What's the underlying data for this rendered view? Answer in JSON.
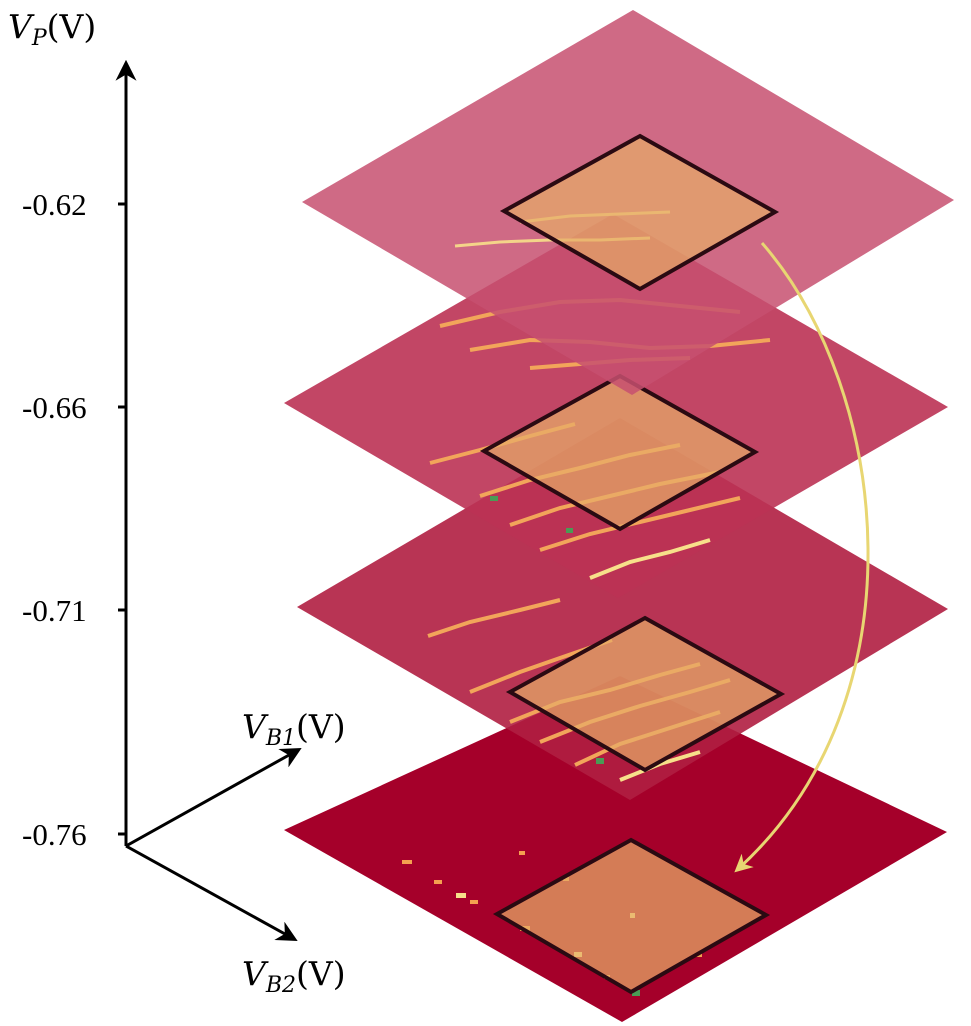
{
  "axes": {
    "vertical": {
      "symbol": "V",
      "subscript": "P",
      "unit": "(V)"
    },
    "b1": {
      "symbol": "V",
      "subscript": "B1",
      "unit": "(V)"
    },
    "b2": {
      "symbol": "V",
      "subscript": "B2",
      "unit": "(V)"
    }
  },
  "ticks": [
    "-0.62",
    "-0.66",
    "-0.71",
    "-0.76"
  ],
  "colors": {
    "plane_fills": [
      "#c75070",
      "#bb3254",
      "#b01e41",
      "#a5002a"
    ],
    "window_fill": "#e6ac68",
    "window_stroke": "#2a0a12",
    "arrow": "#e8d672",
    "trace_light": "#f7e08a",
    "trace_green": "#4a9b55"
  }
}
